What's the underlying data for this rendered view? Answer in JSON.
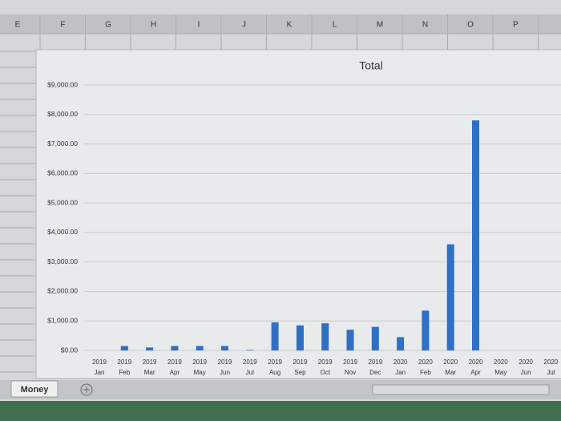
{
  "spreadsheet": {
    "columns": [
      "E",
      "F",
      "G",
      "H",
      "I",
      "J",
      "K",
      "L",
      "M",
      "N",
      "O",
      "P"
    ],
    "sheet_tab": "Money"
  },
  "chart_data": {
    "type": "bar",
    "title": "Total",
    "categories": [
      [
        "2019",
        "Jan"
      ],
      [
        "2019",
        "Feb"
      ],
      [
        "2019",
        "Mar"
      ],
      [
        "2019",
        "Apr"
      ],
      [
        "2019",
        "May"
      ],
      [
        "2019",
        "Jun"
      ],
      [
        "2019",
        "Jul"
      ],
      [
        "2019",
        "Aug"
      ],
      [
        "2019",
        "Sep"
      ],
      [
        "2019",
        "Oct"
      ],
      [
        "2019",
        "Nov"
      ],
      [
        "2019",
        "Dec"
      ],
      [
        "2020",
        "Jan"
      ],
      [
        "2020",
        "Feb"
      ],
      [
        "2020",
        "Mar"
      ],
      [
        "2020",
        "Apr"
      ],
      [
        "2020",
        "May"
      ],
      [
        "2020",
        "Jun"
      ],
      [
        "2020",
        "Jul"
      ]
    ],
    "values": [
      0,
      150,
      100,
      150,
      150,
      150,
      20,
      950,
      850,
      920,
      700,
      800,
      450,
      1350,
      3600,
      7800,
      0,
      0,
      0
    ],
    "color": "#2f6fc4",
    "ylim": [
      0,
      9000
    ],
    "yticks": [
      {
        "value": 0,
        "label": "$0.00"
      },
      {
        "value": 1000,
        "label": "$1,000.00"
      },
      {
        "value": 2000,
        "label": "$2,000.00"
      },
      {
        "value": 3000,
        "label": "$3,000.00"
      },
      {
        "value": 4000,
        "label": "$4,000.00"
      },
      {
        "value": 5000,
        "label": "$5,000.00"
      },
      {
        "value": 6000,
        "label": "$6,000.00"
      },
      {
        "value": 7000,
        "label": "$7,000.00"
      },
      {
        "value": 8000,
        "label": "$8,000.00"
      },
      {
        "value": 9000,
        "label": "$9,000.00"
      }
    ],
    "grid": true
  }
}
